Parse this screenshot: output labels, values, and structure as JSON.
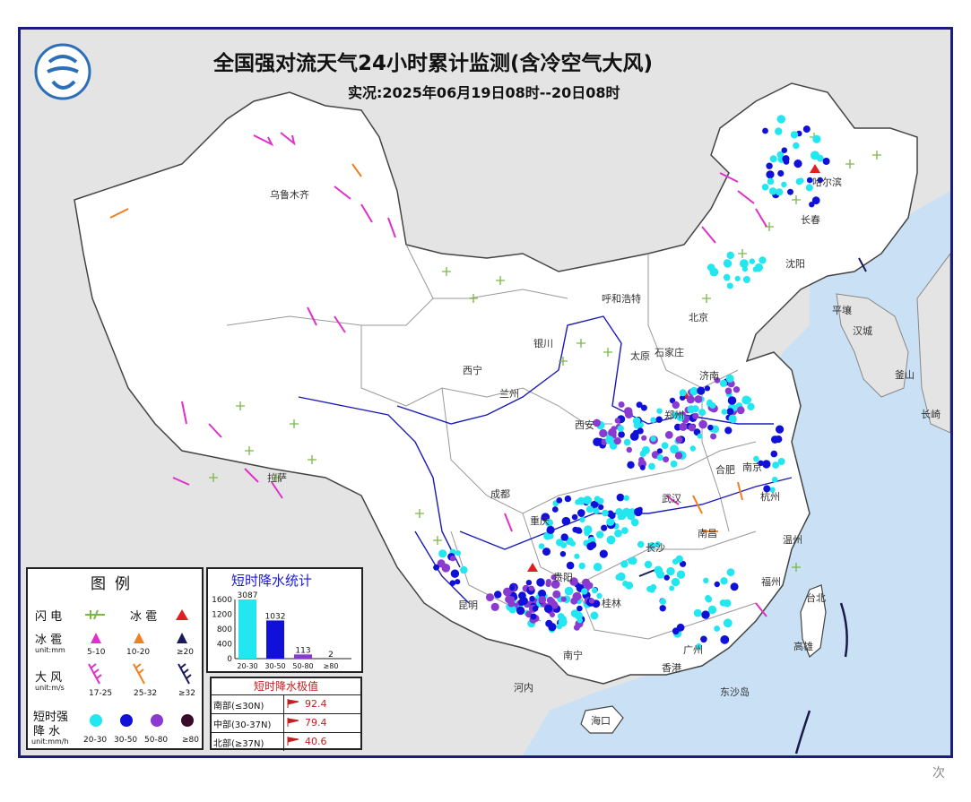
{
  "title": "全国强对流天气24小时累计监测(含冷空气大风)",
  "subtitle": "实况:2025年06月19日08时--20日08时",
  "colors": {
    "land": "#ffffff",
    "sea": "#c9e0f5",
    "outside": "#e4e4e4",
    "lightning": "#7ab648",
    "hail": "#e02020",
    "gale": "#e030c8",
    "rain_20_30": "#22e6f0",
    "rain_30_50": "#1010d8",
    "rain_50_80": "#8a3ad0",
    "rain_80": "#3a0a2a"
  },
  "cities": [
    {
      "name": "乌鲁木齐"
    },
    {
      "name": "哈尔滨"
    },
    {
      "name": "长春"
    },
    {
      "name": "沈阳"
    },
    {
      "name": "呼和浩特"
    },
    {
      "name": "北京"
    },
    {
      "name": "石家庄"
    },
    {
      "name": "银川"
    },
    {
      "name": "太原"
    },
    {
      "name": "济南"
    },
    {
      "name": "西宁"
    },
    {
      "name": "兰州"
    },
    {
      "name": "郑州"
    },
    {
      "name": "西安"
    },
    {
      "name": "合肥"
    },
    {
      "name": "南京"
    },
    {
      "name": "拉萨"
    },
    {
      "name": "成都"
    },
    {
      "name": "武汉"
    },
    {
      "name": "重庆"
    },
    {
      "name": "杭州"
    },
    {
      "name": "长沙"
    },
    {
      "name": "南昌"
    },
    {
      "name": "福州"
    },
    {
      "name": "台北"
    },
    {
      "name": "贵阳"
    },
    {
      "name": "昆明"
    },
    {
      "name": "桂林"
    },
    {
      "name": "广州"
    },
    {
      "name": "南宁"
    },
    {
      "name": "香港"
    },
    {
      "name": "海口"
    },
    {
      "name": "温州"
    },
    {
      "name": "高雄"
    },
    {
      "name": "平壤"
    },
    {
      "name": "汉城"
    },
    {
      "name": "釜山"
    },
    {
      "name": "长崎"
    },
    {
      "name": "河内"
    },
    {
      "name": "东沙岛"
    }
  ],
  "legend": {
    "title": "图例",
    "lightning_label": "闪 电",
    "hail_label": "冰 雹",
    "hail_row_label": "冰 雹",
    "hail_unit": "unit:mm",
    "hail_ranges": [
      "5-10",
      "10-20",
      "≥20"
    ],
    "gale_label": "大 风",
    "gale_unit": "unit:m/s",
    "gale_ranges": [
      "17-25",
      "25-32",
      "≥32"
    ],
    "rain_label_1": "短时强",
    "rain_label_2": "降 水",
    "rain_unit": "unit:mm/h",
    "rain_ranges": [
      "20-30",
      "30-50",
      "50-80",
      "≥80"
    ]
  },
  "chart_data": {
    "type": "bar",
    "title": "短时降水统计",
    "categories": [
      "20-30",
      "30-50",
      "50-80",
      "≥80"
    ],
    "values": [
      3087,
      1032,
      113,
      2
    ],
    "colors": [
      "#22e6f0",
      "#1010d8",
      "#8a3ad0",
      "#3a0a2a"
    ],
    "ylim": [
      0,
      1600
    ],
    "yticks": [
      "0",
      "200",
      "400",
      "600",
      "800",
      "1000",
      "1200",
      "1400",
      "1600"
    ],
    "value_labels": [
      "3087",
      "1032",
      "113",
      "2"
    ]
  },
  "extreme": {
    "title": "短时降水极值",
    "rows": [
      {
        "region": "南部(≤30N)",
        "value": "92.4"
      },
      {
        "region": "中部(30-37N)",
        "value": "79.4"
      },
      {
        "region": "北部(≥37N)",
        "value": "40.6"
      }
    ]
  },
  "watermark": "次"
}
